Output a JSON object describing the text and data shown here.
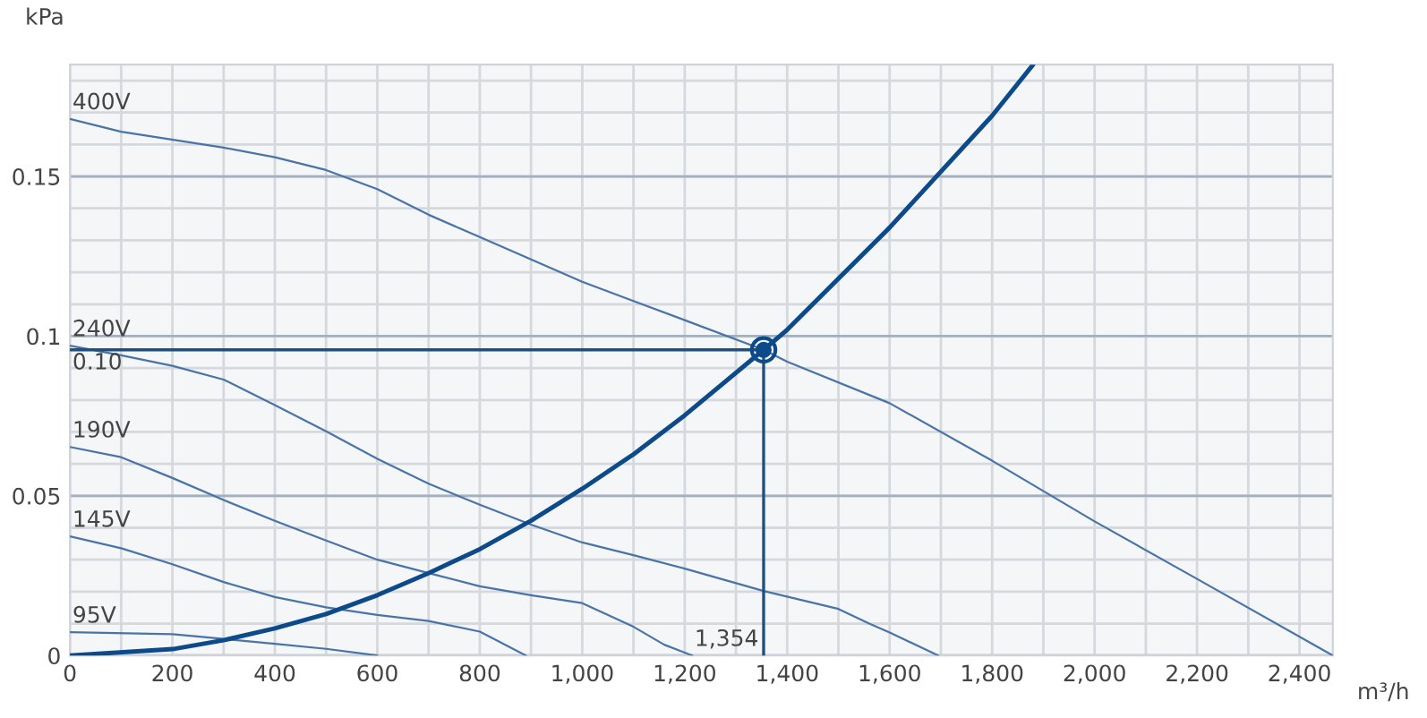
{
  "chart_data": {
    "type": "line",
    "xlabel": "m³/h",
    "ylabel": "kPa",
    "xlim": [
      0,
      2465
    ],
    "ylim": [
      0,
      0.185
    ],
    "xticks": [
      0,
      {
        "value": 100,
        "label": null
      },
      200,
      {
        "value": 300,
        "label": null
      },
      400,
      {
        "value": 500,
        "label": null
      },
      600,
      {
        "value": 700,
        "label": null
      },
      800,
      {
        "value": 900,
        "label": null
      },
      {
        "value": 1000,
        "label": "1,000"
      },
      {
        "value": 1100,
        "label": null
      },
      {
        "value": 1200,
        "label": "1,200"
      },
      {
        "value": 1300,
        "label": null
      },
      {
        "value": 1400,
        "label": "1,400"
      },
      {
        "value": 1500,
        "label": null
      },
      {
        "value": 1600,
        "label": "1,600"
      },
      {
        "value": 1700,
        "label": null
      },
      {
        "value": 1800,
        "label": "1,800"
      },
      {
        "value": 1900,
        "label": null
      },
      {
        "value": 2000,
        "label": "2,000"
      },
      {
        "value": 2100,
        "label": null
      },
      {
        "value": 2200,
        "label": "2,200"
      },
      {
        "value": 2300,
        "label": null
      },
      {
        "value": 2400,
        "label": "2,400"
      }
    ],
    "yticks": [
      0,
      {
        "value": 0.01,
        "label": null
      },
      {
        "value": 0.02,
        "label": null
      },
      {
        "value": 0.03,
        "label": null
      },
      {
        "value": 0.04,
        "label": null
      },
      0.05,
      {
        "value": 0.06,
        "label": null
      },
      {
        "value": 0.07,
        "label": null
      },
      {
        "value": 0.08,
        "label": null
      },
      {
        "value": 0.09,
        "label": null
      },
      0.1,
      {
        "value": 0.11,
        "label": null
      },
      {
        "value": 0.12,
        "label": null
      },
      {
        "value": 0.13,
        "label": null
      },
      {
        "value": 0.14,
        "label": null
      },
      0.15,
      {
        "value": 0.16,
        "label": null
      },
      {
        "value": 0.17,
        "label": null
      },
      {
        "value": 0.18,
        "label": null
      }
    ],
    "grid": true,
    "legend": false,
    "series": [
      {
        "name": "400V",
        "color": "#4a74a8",
        "x": [
          0,
          100,
          300,
          400,
          500,
          600,
          700,
          800,
          900,
          1000,
          1100,
          1200,
          1354,
          1400,
          1600,
          1800,
          2000,
          2200,
          2465
        ],
        "values": [
          0.168,
          0.164,
          0.159,
          0.156,
          0.152,
          0.146,
          0.138,
          0.131,
          0.124,
          0.117,
          0.111,
          0.105,
          0.0957,
          0.092,
          0.079,
          0.061,
          0.042,
          0.024,
          0
        ]
      },
      {
        "name": "240V",
        "color": "#4a74a8",
        "x": [
          0,
          100,
          200,
          300,
          400,
          500,
          600,
          700,
          800,
          900,
          1000,
          1100,
          1200,
          1354,
          1500,
          1560,
          1600,
          1695
        ],
        "values": [
          0.097,
          0.094,
          0.0907,
          0.0864,
          0.0784,
          0.0702,
          0.0616,
          0.0538,
          0.0472,
          0.041,
          0.0354,
          0.0314,
          0.0272,
          0.0202,
          0.0146,
          0.01,
          0.0072,
          0
        ]
      },
      {
        "name": "190V",
        "color": "#4a74a8",
        "x": [
          0,
          100,
          200,
          300,
          400,
          500,
          600,
          700,
          800,
          900,
          1000,
          1100,
          1160,
          1215
        ],
        "values": [
          0.0653,
          0.0621,
          0.0556,
          0.0487,
          0.0422,
          0.036,
          0.03,
          0.0258,
          0.0217,
          0.0189,
          0.0164,
          0.009,
          0.0034,
          0
        ]
      },
      {
        "name": "145V",
        "color": "#4a74a8",
        "x": [
          0,
          100,
          200,
          300,
          400,
          500,
          600,
          700,
          800,
          890
        ],
        "values": [
          0.0373,
          0.0336,
          0.0286,
          0.023,
          0.0183,
          0.0151,
          0.0127,
          0.0108,
          0.0075,
          0
        ]
      },
      {
        "name": "95V",
        "color": "#4a74a8",
        "x": [
          0,
          200,
          300,
          400,
          500,
          600
        ],
        "values": [
          0.0073,
          0.0067,
          0.0052,
          0.0037,
          0.0021,
          0
        ]
      },
      {
        "color": "#0d4a8a",
        "x": [
          0,
          200,
          300,
          400,
          500,
          600,
          700,
          800,
          900,
          1000,
          1100,
          1200,
          1354,
          1400,
          1600,
          1800,
          1880
        ],
        "values": [
          0,
          0.002,
          0.0048,
          0.0085,
          0.013,
          0.0189,
          0.0258,
          0.0333,
          0.0422,
          0.0522,
          0.063,
          0.0752,
          0.0957,
          0.102,
          0.134,
          0.169,
          0.185
        ]
      },
      {
        "color": "#1f4f80",
        "x": [
          0,
          1354
        ],
        "values": [
          0.0957,
          0.0957
        ]
      },
      {
        "color": "#1f4f80",
        "x": [
          1354,
          1354
        ],
        "values": [
          0,
          0.0957
        ]
      },
      {
        "type": "scatter",
        "color": "#0d4a8a",
        "marker": "circle",
        "x": [
          1354
        ],
        "values": [
          0.0957
        ]
      }
    ],
    "annotations": [
      {
        "text": "0.10",
        "x": 0,
        "y": 0.0957
      },
      {
        "text": "1,354",
        "x": 1354,
        "y": 0
      }
    ]
  }
}
